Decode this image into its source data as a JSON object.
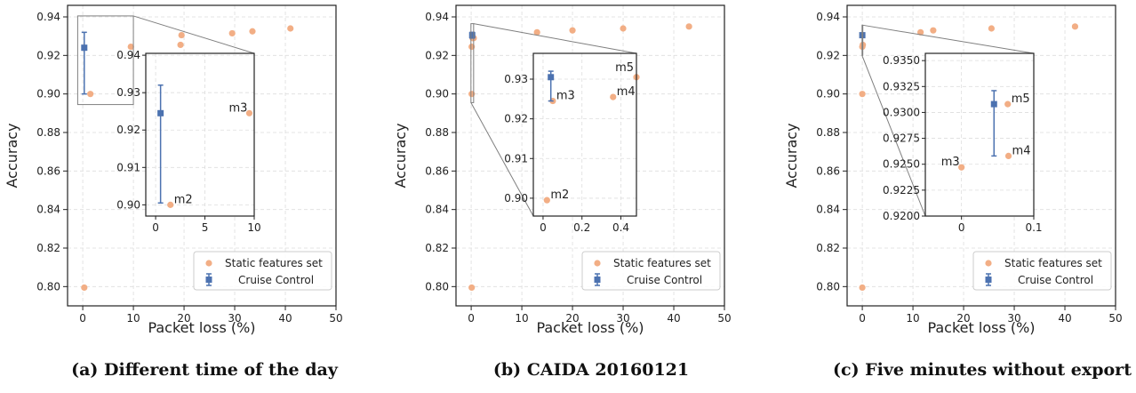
{
  "legend": {
    "static_label": "Static features set",
    "cruise_label": "Cruise Control",
    "position": "lower right"
  },
  "colors": {
    "static": "#f2ae85",
    "cruise": "#4c72b0",
    "axis": "#222222",
    "grid": "#dddddd",
    "connector": "#7f7f7f"
  },
  "chart_data": [
    {
      "type": "scatter",
      "caption": "(a) Different time of the day",
      "xlabel": "Packet loss (%)",
      "ylabel": "Accuracy",
      "xlim": [
        -3,
        50
      ],
      "ylim": [
        0.79,
        0.946
      ],
      "xticks": [
        0,
        10,
        20,
        30,
        40,
        50
      ],
      "yticks": [
        0.8,
        0.82,
        0.84,
        0.86,
        0.88,
        0.9,
        0.92,
        0.94
      ],
      "ytick_decimals": 2,
      "grid": true,
      "series": [
        {
          "name": "Static features set",
          "points": [
            [
              0.3,
              0.7995
            ],
            [
              1.5,
              0.9
            ],
            [
              9.5,
              0.9245
            ],
            [
              19.5,
              0.9305
            ],
            [
              19.3,
              0.9255
            ],
            [
              29.5,
              0.9315
            ],
            [
              33.5,
              0.9325
            ],
            [
              41,
              0.934
            ]
          ]
        },
        {
          "name": "Cruise Control",
          "points": [
            [
              0.3,
              0.924
            ]
          ],
          "yerr_low": [
            0.9
          ],
          "yerr_high": [
            0.932
          ]
        }
      ],
      "inset": {
        "xlim": [
          -1,
          10
        ],
        "ylim": [
          0.897,
          0.9405
        ],
        "xticks": [
          0,
          5,
          10
        ],
        "yticks": [
          0.9,
          0.91,
          0.92,
          0.93,
          0.94
        ],
        "ytick_decimals": 2,
        "static_points": [
          [
            1.5,
            0.9
          ],
          [
            9.5,
            0.9245
          ]
        ],
        "point_labels": [
          {
            "text": "m2",
            "at": [
              1.5,
              0.9
            ],
            "side": "right"
          },
          {
            "text": "m3",
            "at": [
              9.5,
              0.9245
            ],
            "side": "left"
          }
        ],
        "cruise": {
          "point": [
            0.5,
            0.9245
          ],
          "yerr_low": 0.9005,
          "yerr_high": 0.932
        },
        "zoom_region": {
          "x": [
            -1,
            10
          ],
          "y": [
            0.8945,
            0.9405
          ]
        }
      }
    },
    {
      "type": "scatter",
      "caption": "(b) CAIDA 20160121",
      "xlabel": "Packet loss (%)",
      "ylabel": "Accuracy",
      "xlim": [
        -3,
        50
      ],
      "ylim": [
        0.79,
        0.946
      ],
      "xticks": [
        0,
        10,
        20,
        30,
        40,
        50
      ],
      "yticks": [
        0.8,
        0.82,
        0.84,
        0.86,
        0.88,
        0.9,
        0.92,
        0.94
      ],
      "ytick_decimals": 2,
      "grid": true,
      "series": [
        {
          "name": "Static features set",
          "points": [
            [
              0.1,
              0.7995
            ],
            [
              0.1,
              0.9
            ],
            [
              0.1,
              0.9245
            ],
            [
              0.3,
              0.929
            ],
            [
              0.5,
              0.929
            ],
            [
              13,
              0.932
            ],
            [
              20,
              0.933
            ],
            [
              30,
              0.934
            ],
            [
              43,
              0.935
            ]
          ]
        },
        {
          "name": "Cruise Control",
          "points": [
            [
              0.2,
              0.9305
            ]
          ],
          "yerr_low": [
            0.929
          ],
          "yerr_high": [
            0.932
          ]
        }
      ],
      "inset": {
        "xlim": [
          -0.05,
          0.48
        ],
        "ylim": [
          0.8955,
          0.9365
        ],
        "xticks": [
          0.0,
          0.2,
          0.4
        ],
        "yticks": [
          0.9,
          0.91,
          0.92,
          0.93
        ],
        "ytick_decimals": 2,
        "static_points": [
          [
            0.02,
            0.8995
          ],
          [
            0.05,
            0.9245
          ],
          [
            0.36,
            0.9255
          ],
          [
            0.48,
            0.9305
          ]
        ],
        "point_labels": [
          {
            "text": "m2",
            "at": [
              0.02,
              0.8995
            ],
            "side": "right"
          },
          {
            "text": "m3",
            "at": [
              0.05,
              0.9245
            ],
            "side": "right"
          },
          {
            "text": "m4",
            "at": [
              0.36,
              0.9255
            ],
            "side": "right"
          },
          {
            "text": "m5",
            "at": [
              0.48,
              0.9305
            ],
            "side": "up-left"
          }
        ],
        "cruise": {
          "point": [
            0.04,
            0.9305
          ],
          "yerr_low": 0.9245,
          "yerr_high": 0.932
        },
        "zoom_region": {
          "x": [
            -0.05,
            0.48
          ],
          "y": [
            0.8955,
            0.9365
          ]
        }
      }
    },
    {
      "type": "scatter",
      "caption": "(c) Five minutes without export",
      "xlabel": "Packet loss (%)",
      "ylabel": "Accuracy",
      "xlim": [
        -3,
        50
      ],
      "ylim": [
        0.79,
        0.946
      ],
      "xticks": [
        0,
        10,
        20,
        30,
        40,
        50
      ],
      "yticks": [
        0.8,
        0.82,
        0.84,
        0.86,
        0.88,
        0.9,
        0.92,
        0.94
      ],
      "ytick_decimals": 2,
      "grid": true,
      "series": [
        {
          "name": "Static features set",
          "points": [
            [
              0,
              0.7995
            ],
            [
              0,
              0.9
            ],
            [
              0,
              0.9245
            ],
            [
              0.1,
              0.9255
            ],
            [
              11.5,
              0.932
            ],
            [
              14,
              0.933
            ],
            [
              25.5,
              0.934
            ],
            [
              42,
              0.935
            ]
          ]
        },
        {
          "name": "Cruise Control",
          "points": [
            [
              0,
              0.9305
            ]
          ],
          "yerr_low": [
            0.9295
          ],
          "yerr_high": [
            0.9315
          ]
        }
      ],
      "inset": {
        "xlim": [
          -0.05,
          0.1
        ],
        "ylim": [
          0.92,
          0.9357
        ],
        "xticks": [
          0.0,
          0.1
        ],
        "yticks": [
          0.92,
          0.9225,
          0.925,
          0.9275,
          0.93,
          0.9325,
          0.935
        ],
        "ytick_decimals": 4,
        "static_points": [
          [
            0.0,
            0.9247
          ],
          [
            0.065,
            0.9258
          ],
          [
            0.064,
            0.9308
          ]
        ],
        "point_labels": [
          {
            "text": "m3",
            "at": [
              0.0,
              0.9247
            ],
            "side": "left"
          },
          {
            "text": "m4",
            "at": [
              0.065,
              0.9258
            ],
            "side": "right"
          },
          {
            "text": "m5",
            "at": [
              0.064,
              0.9308
            ],
            "side": "right"
          }
        ],
        "cruise": {
          "point": [
            0.045,
            0.9308
          ],
          "yerr_low": 0.9258,
          "yerr_high": 0.9321
        },
        "zoom_region": {
          "x": [
            -0.05,
            0.1
          ],
          "y": [
            0.92,
            0.9357
          ]
        }
      }
    }
  ]
}
